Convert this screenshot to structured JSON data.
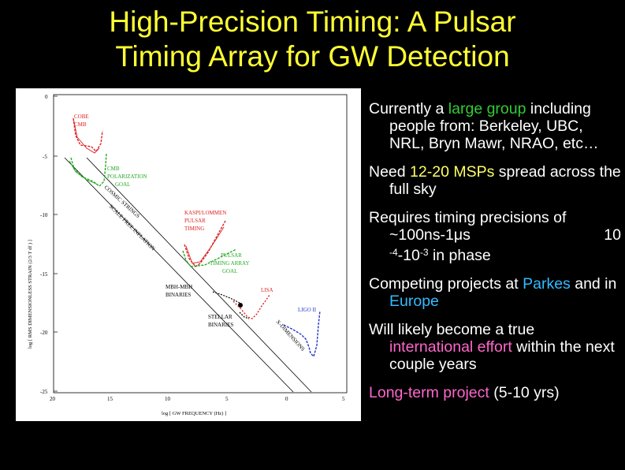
{
  "slide": {
    "title_line1": "High-Precision Timing: A Pulsar",
    "title_line2": "Timing Array for GW Detection",
    "colors": {
      "title": "#ffff33",
      "green": "#33cc33",
      "yellow": "#ffff66",
      "cyan": "#33bbff",
      "magenta": "#ff66cc"
    }
  },
  "figure": {
    "y_label": "log [ RMS DIMENSIONLESS STRAIN (2/3 T df )  ]",
    "x_label": "log [ GW FREQUENCY (Hz) ]",
    "y_ticks": [
      "0",
      "-5",
      "-10",
      "-15",
      "-20",
      "-25"
    ],
    "x_ticks": [
      "20",
      "15",
      "10",
      "5",
      "0",
      "5"
    ],
    "labels": {
      "cobe": "COBE",
      "cmb": "CMB",
      "cmb_pol_1": "CMB",
      "cmb_pol_2": "POLARIZATION",
      "cmb_pol_3": "GOAL",
      "cosmic_strings": "COSMIC STRINGS",
      "scale_free_inflation": "SCALE FREE INFLATION",
      "kaspi_1": "KASPI/LOMMEN",
      "kaspi_2": "PULSAR",
      "kaspi_3": "TIMING",
      "pta_1": "PULSAR",
      "pta_2": "TIMING ARRAY",
      "pta_3": "GOAL",
      "mbh_1": "MBH-MBH",
      "mbh_2": "BINARIES",
      "lisa": "LISA",
      "ligo": "LIGO II",
      "stellar_1": "STELLAR",
      "stellar_2": "BINARIES",
      "extra_dimensions": "X-DIMENSIONS"
    }
  },
  "bullets": {
    "b1_pre": "Currently a ",
    "b1_hl": "large group",
    "b1_post": " including people from: Berkeley, UBC, NRL, Bryn Mawr, NRAO, etc…",
    "b2_pre": "Need ",
    "b2_hl": "12-20 MSPs",
    "b2_post": " spread across the full sky",
    "b3_line1": "Requires timing precisions of",
    "b3_approx": "~100ns-1μs",
    "b3_ten": "10",
    "b3_exp1": "-4",
    "b3_mid": "-10",
    "b3_exp2": "-3",
    "b3_tail": " in phase",
    "b4_pre": "Competing projects at ",
    "b4_hl1": "Parkes",
    "b4_mid": " and in ",
    "b4_hl2": "Europe",
    "b5_pre": "Will likely become a true ",
    "b5_hl": "international effort",
    "b5_post": " within the next couple years",
    "b6_hl": "Long-term project",
    "b6_post": " (5-10 yrs)"
  }
}
